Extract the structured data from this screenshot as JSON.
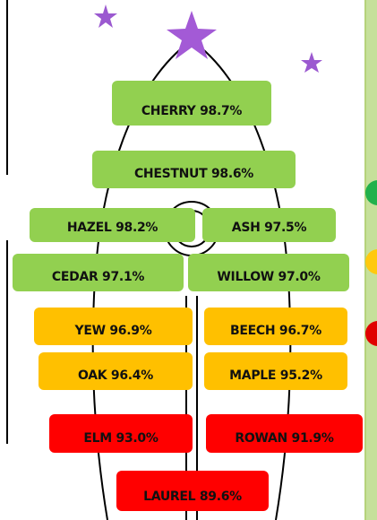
{
  "items": [
    {
      "label": "CHERRY 98.7%",
      "color": "#92d050"
    },
    {
      "label": "CHESTNUT 98.6%",
      "color": "#92d050"
    },
    {
      "label": "HAZEL 98.2%",
      "color": "#92d050"
    },
    {
      "label": "ASH 97.5%",
      "color": "#92d050"
    },
    {
      "label": "CEDAR 97.1%",
      "color": "#92d050"
    },
    {
      "label": "WILLOW 97.0%",
      "color": "#92d050"
    },
    {
      "label": "YEW 96.9%",
      "color": "#ffc000"
    },
    {
      "label": "BEECH 96.7%",
      "color": "#ffc000"
    },
    {
      "label": "OAK 96.4%",
      "color": "#ffc000"
    },
    {
      "label": "MAPLE 95.2%",
      "color": "#ffc000"
    },
    {
      "label": "ELM 93.0%",
      "color": "#ff0000"
    },
    {
      "label": "ROWAN 91.9%",
      "color": "#ff0000"
    },
    {
      "label": "LAUREL 89.6%",
      "color": "#ff0000"
    }
  ]
}
